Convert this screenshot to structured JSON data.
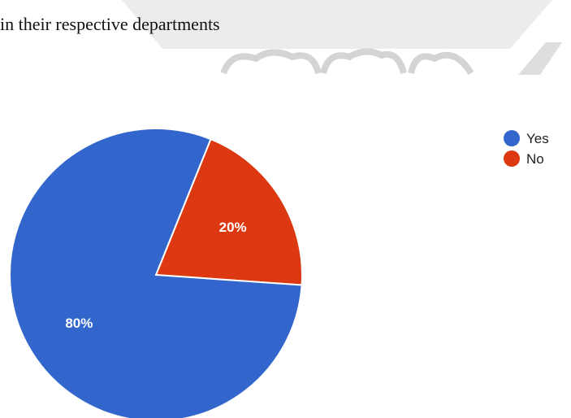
{
  "question_text": "in their respective departments",
  "colors": {
    "yes": "#3366cc",
    "no": "#dc3912",
    "watermark": "#dcdcdc"
  },
  "chart_data": {
    "type": "pie",
    "title": "",
    "labels": [
      "Yes",
      "No"
    ],
    "values": [
      80,
      20
    ],
    "value_labels": [
      "80%",
      "20%"
    ],
    "start_angle_deg": 90,
    "direction": "clockwise",
    "legend": {
      "position": "top-right",
      "entries": [
        "Yes",
        "No"
      ]
    }
  }
}
